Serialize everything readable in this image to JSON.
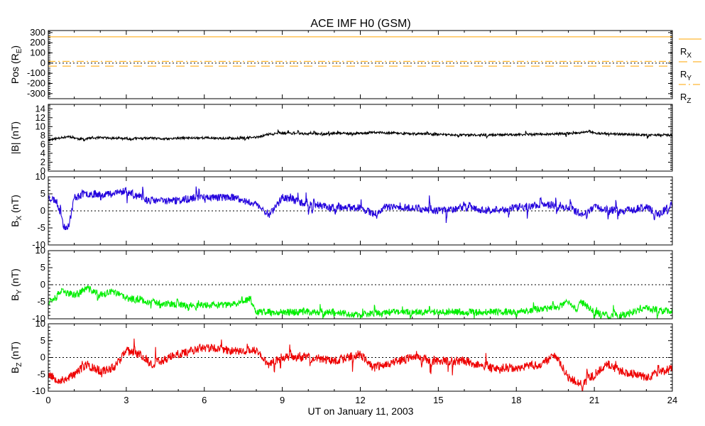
{
  "chart_data": {
    "type": "line",
    "title": "ACE IMF H0 (GSM)",
    "xlabel": "UT on January 11, 2003",
    "xlim": [
      0,
      24
    ],
    "x_ticks": [
      "0",
      "3",
      "6",
      "9",
      "12",
      "15",
      "18",
      "21",
      "24"
    ],
    "panels": [
      {
        "ylabel_main": "Pos (R",
        "ylabel_sub": "E",
        "ylabel_tail": ")",
        "ylim": [
          -350,
          320
        ],
        "y_ticks": [
          "300",
          "200",
          "100",
          "0",
          "-100",
          "-200",
          "-300"
        ],
        "zero_line": true,
        "legend": [
          {
            "name": "R",
            "sub": "X"
          },
          {
            "name": "R",
            "sub": "Y"
          },
          {
            "name": "R",
            "sub": "Z"
          }
        ],
        "series": [
          {
            "name": "R_X",
            "color": "#ffa500",
            "style": "solid",
            "x": [
              0,
              24
            ],
            "values": [
              258,
              258
            ]
          },
          {
            "name": "R_Y",
            "color": "#ffa500",
            "style": "dashed",
            "x": [
              0,
              24
            ],
            "values": [
              -30,
              -30
            ]
          },
          {
            "name": "R_Z",
            "color": "#ffa500",
            "style": "dashdot",
            "x": [
              0,
              24
            ],
            "values": [
              17,
              17
            ]
          }
        ]
      },
      {
        "ylabel_main": "|B| (nT)",
        "ylabel_sub": "",
        "ylabel_tail": "",
        "ylim": [
          0,
          15
        ],
        "y_ticks": [
          "14",
          "12",
          "10",
          "8",
          "6",
          "4",
          "2",
          "0"
        ],
        "zero_line": false,
        "series": [
          {
            "name": "|B|",
            "color": "#000000",
            "noise": 0.25,
            "seed": 11,
            "x": [
              0,
              0.3,
              0.5,
              0.8,
              1.2,
              1.5,
              2,
              3,
              4,
              4.5,
              5,
              6,
              7,
              8,
              8.5,
              9,
              10,
              12,
              12.5,
              14,
              16,
              18,
              20,
              20.5,
              20.8,
              21,
              22,
              23,
              24
            ],
            "values": [
              7.0,
              7.3,
              7.6,
              7.8,
              7.2,
              7.3,
              7.5,
              7.3,
              7.4,
              7.2,
              7.4,
              7.5,
              7.3,
              7.6,
              8.3,
              8.5,
              8.4,
              8.5,
              8.7,
              8.4,
              8.1,
              8.2,
              8.4,
              8.6,
              9.0,
              8.5,
              8.3,
              8.1,
              8.1
            ]
          }
        ]
      },
      {
        "ylabel_main": "B",
        "ylabel_sub": "X",
        "ylabel_tail": " (nT)",
        "ylim": [
          -10,
          10
        ],
        "y_ticks": [
          "10",
          "5",
          "0",
          "-5",
          "-10"
        ],
        "zero_line": true,
        "series": [
          {
            "name": "B_X",
            "color": "#2200dd",
            "noise": 1.1,
            "seed": 23,
            "x": [
              0,
              0.3,
              0.5,
              0.6,
              0.8,
              1,
              1.5,
              2,
              2.5,
              3,
              3.5,
              4,
              5,
              6,
              7,
              7.5,
              8,
              8.3,
              8.5,
              9,
              10,
              11,
              12,
              12.5,
              13,
              14,
              15,
              16,
              17,
              18,
              19,
              20,
              20.5,
              21,
              22,
              23,
              23.5,
              24
            ],
            "values": [
              4,
              3,
              -1,
              -5,
              -4,
              4,
              5,
              5,
              5,
              6,
              4,
              3,
              3,
              4,
              4,
              3,
              2,
              0,
              -1,
              4,
              2,
              1,
              1,
              -1,
              1,
              1,
              0,
              1,
              0,
              1,
              2,
              1,
              -1,
              1,
              0,
              1,
              -1,
              2
            ]
          }
        ]
      },
      {
        "ylabel_main": "B",
        "ylabel_sub": "Y",
        "ylabel_tail": " (nT)",
        "ylim": [
          -10,
          10
        ],
        "y_ticks": [
          "10",
          "5",
          "0",
          "-5",
          "-10"
        ],
        "zero_line": true,
        "series": [
          {
            "name": "B_Y",
            "color": "#00ee00",
            "noise": 1.0,
            "seed": 37,
            "x": [
              0,
              0.5,
              1,
              1.5,
              2,
              2.5,
              3,
              4,
              5,
              6,
              7,
              7.8,
              8,
              8.3,
              9,
              10,
              11,
              12,
              13,
              13.5,
              14,
              15,
              16,
              17,
              18,
              19,
              19.5,
              20,
              20.3,
              20.5,
              21,
              21.5,
              22,
              23,
              24
            ],
            "values": [
              -5,
              -2,
              -3,
              -1,
              -3,
              -2,
              -4,
              -5,
              -6,
              -6,
              -6,
              -4,
              -8,
              -8,
              -8,
              -8,
              -8,
              -9,
              -8,
              -8,
              -8,
              -8,
              -8,
              -8,
              -8,
              -7,
              -7,
              -5,
              -7,
              -5,
              -8,
              -9,
              -9,
              -7,
              -8
            ]
          }
        ]
      },
      {
        "ylabel_main": "B",
        "ylabel_sub": "Z",
        "ylabel_tail": " (nT)",
        "ylim": [
          -10,
          10
        ],
        "y_ticks": [
          "10",
          "5",
          "0",
          "-5",
          "-10"
        ],
        "zero_line": true,
        "series": [
          {
            "name": "B_Z",
            "color": "#ee0000",
            "noise": 1.3,
            "seed": 53,
            "x": [
              0,
              0.5,
              1,
              1.5,
              2,
              2.5,
              3,
              3.5,
              4,
              5,
              6,
              7,
              8,
              8.5,
              9,
              10,
              11,
              12,
              12.5,
              13,
              13.5,
              14,
              15,
              16,
              17,
              18,
              19,
              19.5,
              20,
              20.5,
              21,
              21.5,
              22,
              22.5,
              23,
              24
            ],
            "values": [
              -5,
              -7,
              -5,
              -2,
              -4,
              -3,
              2,
              1,
              -2,
              1,
              3,
              2,
              2,
              -2,
              0,
              0,
              -1,
              1,
              -3,
              -2,
              -1,
              0,
              -1,
              -1,
              -3,
              -3,
              -2,
              1,
              -6,
              -8,
              -5,
              -2,
              -4,
              -5,
              -6,
              -3
            ]
          }
        ]
      }
    ]
  }
}
